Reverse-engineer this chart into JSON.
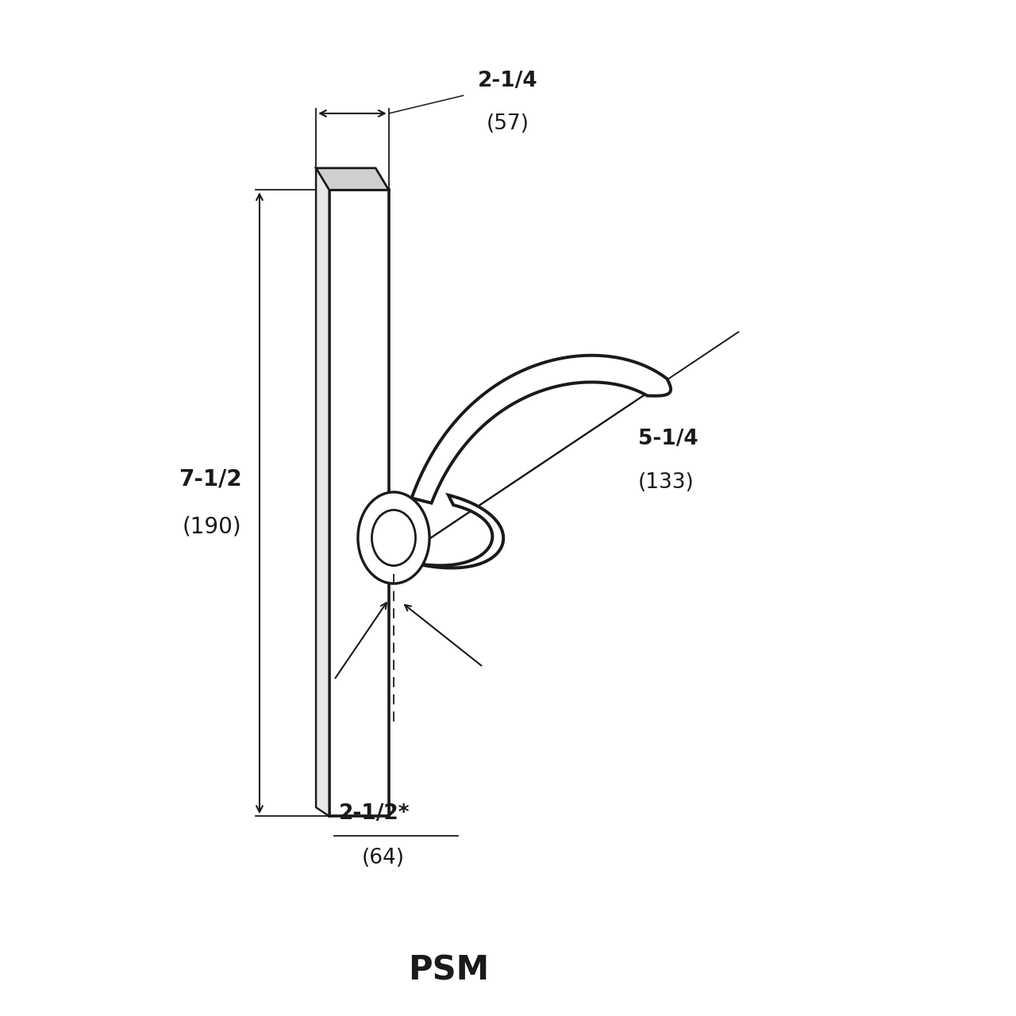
{
  "bg_color": "#ffffff",
  "line_color": "#1a1a1a",
  "title": "PSM",
  "title_fontsize": 30,
  "dim1_label": "2-1/4",
  "dim1_sub": "(57)",
  "dim2_label": "7-1/2",
  "dim2_sub": "(190)",
  "dim3_label": "5-1/4",
  "dim3_sub": "(133)",
  "dim4_label": "2-1/2*",
  "dim4_sub": "(64)",
  "annotation_fontsize": 19,
  "lw": 2.2
}
